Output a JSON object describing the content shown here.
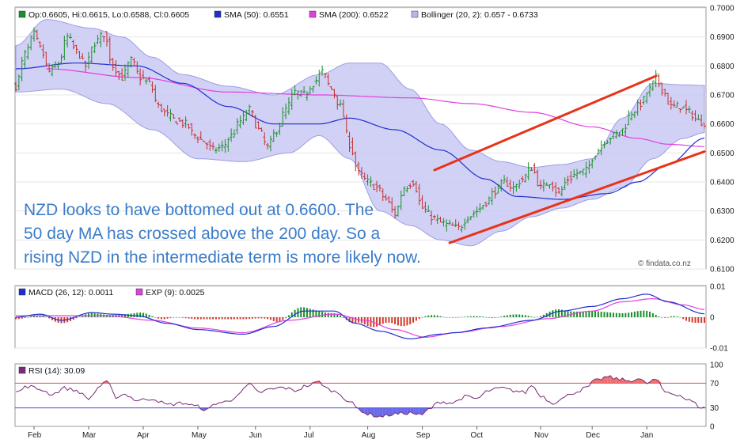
{
  "chart_data": [
    {
      "type": "candlestick",
      "panel": "price",
      "legend": [
        {
          "label": "Op:0.6605, Hi:0.6615, Lo:0.6588, Cl:0.6605",
          "color": "#1a8f2b",
          "icon": "green-square-icon"
        },
        {
          "label": "SMA (50): 0.6551",
          "color": "#1f2fcf",
          "icon": "blue-square-icon"
        },
        {
          "label": "SMA (200): 0.6522",
          "color": "#e040e0",
          "icon": "magenta-square-icon"
        },
        {
          "label": "Bollinger (20, 2): 0.657 - 0.6733",
          "color": "#b7b7ef",
          "icon": "lavender-square-icon"
        }
      ],
      "ylim": [
        0.61,
        0.7
      ],
      "yticks": [
        "0.7000",
        "0.6900",
        "0.6800",
        "0.6700",
        "0.6600",
        "0.6500",
        "0.6400",
        "0.6300",
        "0.6200",
        "0.6100"
      ],
      "close_anchors": [
        [
          0,
          0.673
        ],
        [
          3,
          0.684
        ],
        [
          6,
          0.691
        ],
        [
          8,
          0.686
        ],
        [
          11,
          0.678
        ],
        [
          14,
          0.681
        ],
        [
          17,
          0.69
        ],
        [
          20,
          0.685
        ],
        [
          23,
          0.68
        ],
        [
          26,
          0.688
        ],
        [
          29,
          0.691
        ],
        [
          32,
          0.68
        ],
        [
          35,
          0.676
        ],
        [
          38,
          0.682
        ],
        [
          41,
          0.676
        ],
        [
          44,
          0.674
        ],
        [
          47,
          0.666
        ],
        [
          50,
          0.663
        ],
        [
          53,
          0.661
        ],
        [
          56,
          0.66
        ],
        [
          59,
          0.656
        ],
        [
          62,
          0.654
        ],
        [
          65,
          0.651
        ],
        [
          68,
          0.652
        ],
        [
          71,
          0.656
        ],
        [
          74,
          0.661
        ],
        [
          77,
          0.665
        ],
        [
          80,
          0.658
        ],
        [
          83,
          0.652
        ],
        [
          86,
          0.658
        ],
        [
          89,
          0.665
        ],
        [
          92,
          0.671
        ],
        [
          95,
          0.67
        ],
        [
          98,
          0.674
        ],
        [
          101,
          0.678
        ],
        [
          104,
          0.672
        ],
        [
          107,
          0.666
        ],
        [
          110,
          0.653
        ],
        [
          113,
          0.643
        ],
        [
          116,
          0.64
        ],
        [
          119,
          0.638
        ],
        [
          122,
          0.634
        ],
        [
          125,
          0.629
        ],
        [
          128,
          0.638
        ],
        [
          131,
          0.64
        ],
        [
          134,
          0.631
        ],
        [
          137,
          0.628
        ],
        [
          140,
          0.626
        ],
        [
          143,
          0.625
        ],
        [
          146,
          0.624
        ],
        [
          149,
          0.628
        ],
        [
          152,
          0.63
        ],
        [
          155,
          0.633
        ],
        [
          158,
          0.637
        ],
        [
          161,
          0.64
        ],
        [
          164,
          0.638
        ],
        [
          167,
          0.641
        ],
        [
          170,
          0.645
        ],
        [
          173,
          0.638
        ],
        [
          176,
          0.64
        ],
        [
          179,
          0.636
        ],
        [
          182,
          0.641
        ],
        [
          185,
          0.643
        ],
        [
          188,
          0.644
        ],
        [
          191,
          0.65
        ],
        [
          194,
          0.654
        ],
        [
          197,
          0.656
        ],
        [
          200,
          0.658
        ],
        [
          203,
          0.664
        ],
        [
          206,
          0.667
        ],
        [
          209,
          0.672
        ],
        [
          211,
          0.676
        ],
        [
          213,
          0.672
        ],
        [
          216,
          0.666
        ],
        [
          219,
          0.666
        ],
        [
          222,
          0.664
        ],
        [
          225,
          0.661
        ],
        [
          227,
          0.6605
        ]
      ],
      "sma50_anchors": [
        [
          0,
          0.679
        ],
        [
          20,
          0.681
        ],
        [
          40,
          0.68
        ],
        [
          55,
          0.674
        ],
        [
          70,
          0.666
        ],
        [
          85,
          0.66
        ],
        [
          100,
          0.66
        ],
        [
          110,
          0.662
        ],
        [
          125,
          0.658
        ],
        [
          140,
          0.651
        ],
        [
          155,
          0.641
        ],
        [
          165,
          0.635
        ],
        [
          180,
          0.634
        ],
        [
          195,
          0.636
        ],
        [
          205,
          0.64
        ],
        [
          215,
          0.646
        ],
        [
          227,
          0.6551
        ]
      ],
      "sma200_anchors": [
        [
          10,
          0.679
        ],
        [
          40,
          0.676
        ],
        [
          70,
          0.671
        ],
        [
          100,
          0.67
        ],
        [
          130,
          0.669
        ],
        [
          150,
          0.667
        ],
        [
          170,
          0.664
        ],
        [
          190,
          0.659
        ],
        [
          205,
          0.655
        ],
        [
          215,
          0.653
        ],
        [
          227,
          0.6522
        ]
      ],
      "boll_upper_anchors": [
        [
          0,
          0.687
        ],
        [
          10,
          0.696
        ],
        [
          25,
          0.693
        ],
        [
          35,
          0.69
        ],
        [
          45,
          0.683
        ],
        [
          55,
          0.677
        ],
        [
          70,
          0.673
        ],
        [
          85,
          0.67
        ],
        [
          100,
          0.677
        ],
        [
          110,
          0.681
        ],
        [
          120,
          0.681
        ],
        [
          130,
          0.672
        ],
        [
          140,
          0.66
        ],
        [
          150,
          0.651
        ],
        [
          160,
          0.647
        ],
        [
          170,
          0.645
        ],
        [
          180,
          0.646
        ],
        [
          190,
          0.648
        ],
        [
          200,
          0.662
        ],
        [
          210,
          0.674
        ],
        [
          220,
          0.6735
        ],
        [
          227,
          0.6733
        ]
      ],
      "boll_lower_anchors": [
        [
          0,
          0.671
        ],
        [
          15,
          0.672
        ],
        [
          30,
          0.667
        ],
        [
          45,
          0.658
        ],
        [
          60,
          0.648
        ],
        [
          75,
          0.647
        ],
        [
          90,
          0.65
        ],
        [
          100,
          0.656
        ],
        [
          110,
          0.648
        ],
        [
          120,
          0.63
        ],
        [
          130,
          0.625
        ],
        [
          140,
          0.62
        ],
        [
          150,
          0.618
        ],
        [
          160,
          0.623
        ],
        [
          170,
          0.628
        ],
        [
          180,
          0.631
        ],
        [
          190,
          0.634
        ],
        [
          200,
          0.638
        ],
        [
          210,
          0.648
        ],
        [
          220,
          0.655
        ],
        [
          227,
          0.657
        ]
      ],
      "trendlines": [
        {
          "from": [
            138,
            0.6441
          ],
          "to": [
            211,
            0.6765
          ],
          "color": "#e8331a"
        },
        {
          "from": [
            143,
            0.619
          ],
          "to": [
            227,
            0.6505
          ],
          "color": "#e8331a"
        }
      ],
      "annotation_lines": [
        "NZD looks to have bottomed out at 0.6600. The",
        "50 day MA has crossed above the 200 day. So a",
        "rising NZD in the intermediate term is more likely now."
      ],
      "watermark": "© findata.co.nz",
      "xlabels": [
        {
          "label": "Feb",
          "day": 6
        },
        {
          "label": "Mar",
          "day": 24
        },
        {
          "label": "Apr",
          "day": 42
        },
        {
          "label": "May",
          "day": 60
        },
        {
          "label": "Jun",
          "day": 79
        },
        {
          "label": "Jul",
          "day": 97
        },
        {
          "label": "Aug",
          "day": 116
        },
        {
          "label": "Sep",
          "day": 134
        },
        {
          "label": "Oct",
          "day": 152
        },
        {
          "label": "Nov",
          "day": 173
        },
        {
          "label": "Dec",
          "day": 190
        },
        {
          "label": "Jan",
          "day": 208
        }
      ]
    },
    {
      "type": "line+bar",
      "panel": "macd",
      "legend": [
        {
          "label": "MACD (26, 12): 0.0011",
          "color": "#1f2fcf",
          "icon": "blue-square-icon"
        },
        {
          "label": "EXP (9): 0.0025",
          "color": "#e040e0",
          "icon": "magenta-square-icon"
        }
      ],
      "ylim": [
        -0.01,
        0.01
      ],
      "yticks": [
        "0.01",
        "0",
        "-0.01"
      ],
      "macd_anchors": [
        [
          0,
          0.0
        ],
        [
          8,
          0.001
        ],
        [
          15,
          -0.001
        ],
        [
          25,
          0.0015
        ],
        [
          32,
          0.001
        ],
        [
          40,
          0.0005
        ],
        [
          50,
          -0.002
        ],
        [
          60,
          -0.004
        ],
        [
          75,
          -0.0055
        ],
        [
          85,
          -0.003
        ],
        [
          95,
          0.002
        ],
        [
          105,
          0.002
        ],
        [
          112,
          -0.002
        ],
        [
          120,
          -0.0045
        ],
        [
          130,
          -0.007
        ],
        [
          140,
          -0.0055
        ],
        [
          145,
          -0.005
        ],
        [
          155,
          -0.0035
        ],
        [
          170,
          -0.001
        ],
        [
          180,
          0.002
        ],
        [
          190,
          0.0035
        ],
        [
          200,
          0.006
        ],
        [
          208,
          0.0075
        ],
        [
          215,
          0.005
        ],
        [
          227,
          0.0011
        ]
      ],
      "signal_anchors": [
        [
          0,
          0.0005
        ],
        [
          15,
          0.0005
        ],
        [
          30,
          0.0005
        ],
        [
          45,
          -0.001
        ],
        [
          60,
          -0.0035
        ],
        [
          75,
          -0.005
        ],
        [
          90,
          -0.001
        ],
        [
          105,
          0.001
        ],
        [
          115,
          -0.001
        ],
        [
          125,
          -0.004
        ],
        [
          135,
          -0.0065
        ],
        [
          145,
          -0.005
        ],
        [
          160,
          -0.003
        ],
        [
          175,
          -0.0005
        ],
        [
          190,
          0.002
        ],
        [
          200,
          0.005
        ],
        [
          210,
          0.006
        ],
        [
          220,
          0.004
        ],
        [
          227,
          0.0025
        ]
      ]
    },
    {
      "type": "line",
      "panel": "rsi",
      "legend": [
        {
          "label": "RSI (14): 30.09",
          "color": "#7a2a7a",
          "icon": "purple-square-icon"
        }
      ],
      "ylim": [
        0,
        100
      ],
      "yticks": [
        "100",
        "70",
        "30",
        "0"
      ],
      "levels": [
        70,
        30
      ],
      "rsi_anchors": [
        [
          0,
          55
        ],
        [
          4,
          65
        ],
        [
          8,
          60
        ],
        [
          12,
          52
        ],
        [
          16,
          62
        ],
        [
          20,
          58
        ],
        [
          24,
          45
        ],
        [
          28,
          66
        ],
        [
          30,
          72
        ],
        [
          33,
          48
        ],
        [
          36,
          52
        ],
        [
          40,
          42
        ],
        [
          45,
          45
        ],
        [
          50,
          35
        ],
        [
          55,
          38
        ],
        [
          60,
          32
        ],
        [
          63,
          26
        ],
        [
          66,
          38
        ],
        [
          70,
          40
        ],
        [
          74,
          55
        ],
        [
          77,
          68
        ],
        [
          80,
          55
        ],
        [
          84,
          60
        ],
        [
          88,
          63
        ],
        [
          92,
          58
        ],
        [
          96,
          66
        ],
        [
          100,
          72
        ],
        [
          103,
          60
        ],
        [
          106,
          55
        ],
        [
          110,
          40
        ],
        [
          113,
          28
        ],
        [
          116,
          20
        ],
        [
          120,
          16
        ],
        [
          125,
          20
        ],
        [
          130,
          22
        ],
        [
          134,
          18
        ],
        [
          136,
          28
        ],
        [
          140,
          40
        ],
        [
          144,
          38
        ],
        [
          148,
          48
        ],
        [
          152,
          45
        ],
        [
          156,
          58
        ],
        [
          160,
          62
        ],
        [
          164,
          58
        ],
        [
          168,
          55
        ],
        [
          170,
          67
        ],
        [
          173,
          50
        ],
        [
          177,
          38
        ],
        [
          180,
          45
        ],
        [
          184,
          55
        ],
        [
          188,
          62
        ],
        [
          191,
          74
        ],
        [
          195,
          80
        ],
        [
          198,
          77
        ],
        [
          202,
          74
        ],
        [
          205,
          77
        ],
        [
          208,
          70
        ],
        [
          211,
          76
        ],
        [
          214,
          56
        ],
        [
          218,
          52
        ],
        [
          222,
          42
        ],
        [
          226,
          31
        ],
        [
          227,
          30
        ]
      ]
    }
  ]
}
